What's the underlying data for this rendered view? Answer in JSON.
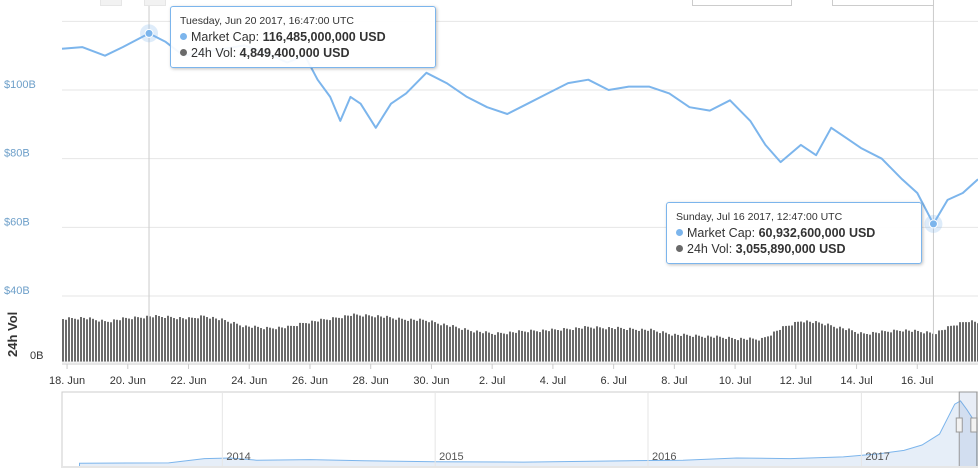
{
  "colors": {
    "market_cap": "#7cb5ec",
    "volume": "#6a6a6a",
    "axis_text": "#6d9fc9",
    "axis_text_dark": "#333333",
    "grid": "#e6e6e6",
    "navigator_fill": "#e6eef8"
  },
  "chart_data": [
    {
      "type": "line",
      "title": "",
      "ylabel": "",
      "x_range": [
        "2017-06-17T20:00",
        "2017-07-18T00:00"
      ],
      "ylim": [
        40,
        120
      ],
      "y_unit": "billion USD",
      "y_ticks": [
        "$40B",
        "$60B",
        "$80B",
        "$100B"
      ],
      "grid": true,
      "x_tick_labels": [
        "18. Jun",
        "20. Jun",
        "22. Jun",
        "24. Jun",
        "26. Jun",
        "28. Jun",
        "30. Jun",
        "2. Jul",
        "4. Jul",
        "6. Jul",
        "8. Jul",
        "10. Jul",
        "12. Jul",
        "14. Jul",
        "16. Jul"
      ],
      "series": [
        {
          "name": "Market Cap",
          "points": [
            [
              "2017-06-17T20:00",
              112
            ],
            [
              "2017-06-18T12:00",
              112.5
            ],
            [
              "2017-06-19T06:00",
              110
            ],
            [
              "2017-06-19T20:00",
              112.5
            ],
            [
              "2017-06-20T16:47",
              116.5
            ],
            [
              "2017-06-21T06:00",
              114
            ],
            [
              "2017-06-21T20:00",
              110
            ],
            [
              "2017-06-22T12:00",
              111
            ],
            [
              "2017-06-23T04:00",
              112
            ],
            [
              "2017-06-23T20:00",
              113
            ],
            [
              "2017-06-24T12:00",
              111
            ],
            [
              "2017-06-25T06:00",
              108
            ],
            [
              "2017-06-25T20:00",
              110
            ],
            [
              "2017-06-26T06:00",
              103
            ],
            [
              "2017-06-26T16:00",
              98
            ],
            [
              "2017-06-27T00:00",
              91
            ],
            [
              "2017-06-27T08:00",
              98
            ],
            [
              "2017-06-27T16:00",
              96
            ],
            [
              "2017-06-28T04:00",
              89
            ],
            [
              "2017-06-28T16:00",
              96
            ],
            [
              "2017-06-29T04:00",
              99
            ],
            [
              "2017-06-29T20:00",
              105
            ],
            [
              "2017-06-30T12:00",
              102
            ],
            [
              "2017-07-01T04:00",
              98
            ],
            [
              "2017-07-01T20:00",
              95
            ],
            [
              "2017-07-02T12:00",
              93
            ],
            [
              "2017-07-03T04:00",
              96
            ],
            [
              "2017-07-03T20:00",
              99
            ],
            [
              "2017-07-04T12:00",
              102
            ],
            [
              "2017-07-05T04:00",
              103
            ],
            [
              "2017-07-05T20:00",
              100
            ],
            [
              "2017-07-06T12:00",
              101
            ],
            [
              "2017-07-07T04:00",
              101
            ],
            [
              "2017-07-07T20:00",
              99
            ],
            [
              "2017-07-08T12:00",
              95
            ],
            [
              "2017-07-09T04:00",
              94
            ],
            [
              "2017-07-09T20:00",
              97
            ],
            [
              "2017-07-10T12:00",
              91
            ],
            [
              "2017-07-11T00:00",
              84
            ],
            [
              "2017-07-11T12:00",
              79
            ],
            [
              "2017-07-12T04:00",
              84
            ],
            [
              "2017-07-12T16:00",
              81
            ],
            [
              "2017-07-13T04:00",
              89
            ],
            [
              "2017-07-13T16:00",
              86
            ],
            [
              "2017-07-14T04:00",
              83
            ],
            [
              "2017-07-14T20:00",
              80
            ],
            [
              "2017-07-15T12:00",
              74
            ],
            [
              "2017-07-16T00:00",
              70
            ],
            [
              "2017-07-16T12:47",
              61
            ],
            [
              "2017-07-17T00:00",
              68
            ],
            [
              "2017-07-17T12:00",
              70
            ],
            [
              "2017-07-18T00:00",
              74
            ]
          ]
        }
      ]
    },
    {
      "type": "bar",
      "title": "",
      "ylabel": "24h Vol",
      "y_ticks": [
        "0B"
      ],
      "series": [
        {
          "name": "24h Vol",
          "points": [
            [
              "2017-06-17T20:00",
              4.6
            ],
            [
              "2017-06-18T12:00",
              4.7
            ],
            [
              "2017-06-19T06:00",
              4.3
            ],
            [
              "2017-06-19T20:00",
              4.6
            ],
            [
              "2017-06-20T16:47",
              4.85
            ],
            [
              "2017-06-21T06:00",
              4.8
            ],
            [
              "2017-06-22T00:00",
              4.6
            ],
            [
              "2017-06-22T12:00",
              4.9
            ],
            [
              "2017-06-23T04:00",
              4.4
            ],
            [
              "2017-06-23T20:00",
              3.8
            ],
            [
              "2017-06-24T12:00",
              3.6
            ],
            [
              "2017-06-25T06:00",
              3.7
            ],
            [
              "2017-06-25T20:00",
              4.2
            ],
            [
              "2017-06-26T16:00",
              4.6
            ],
            [
              "2017-06-27T08:00",
              5.0
            ],
            [
              "2017-06-28T04:00",
              4.9
            ],
            [
              "2017-06-28T20:00",
              4.6
            ],
            [
              "2017-06-29T20:00",
              4.4
            ],
            [
              "2017-06-30T12:00",
              3.9
            ],
            [
              "2017-07-01T04:00",
              3.4
            ],
            [
              "2017-07-02T00:00",
              3.0
            ],
            [
              "2017-07-03T04:00",
              3.3
            ],
            [
              "2017-07-04T00:00",
              3.4
            ],
            [
              "2017-07-05T04:00",
              3.7
            ],
            [
              "2017-07-06T00:00",
              3.6
            ],
            [
              "2017-07-07T04:00",
              3.4
            ],
            [
              "2017-07-08T00:00",
              2.9
            ],
            [
              "2017-07-09T04:00",
              2.7
            ],
            [
              "2017-07-10T00:00",
              2.5
            ],
            [
              "2017-07-10T20:00",
              2.4
            ],
            [
              "2017-07-11T12:00",
              3.6
            ],
            [
              "2017-07-12T04:00",
              4.4
            ],
            [
              "2017-07-12T20:00",
              4.1
            ],
            [
              "2017-07-13T12:00",
              3.6
            ],
            [
              "2017-07-14T04:00",
              3.0
            ],
            [
              "2017-07-14T20:00",
              3.2
            ],
            [
              "2017-07-15T12:00",
              3.4
            ],
            [
              "2017-07-16T12:47",
              3.06
            ],
            [
              "2017-07-17T04:00",
              3.9
            ],
            [
              "2017-07-17T16:00",
              4.4
            ],
            [
              "2017-07-18T00:00",
              4.2
            ]
          ]
        }
      ]
    },
    {
      "type": "area",
      "title": "",
      "x_tick_labels": [
        "2014",
        "2015",
        "2016",
        "2017"
      ],
      "series": [
        {
          "name": "",
          "points": [
            [
              "2013-05-01",
              1.5
            ],
            [
              "2013-10-01",
              2
            ],
            [
              "2013-12-01",
              10
            ],
            [
              "2014-01-15",
              11
            ],
            [
              "2014-03-01",
              7
            ],
            [
              "2014-06-01",
              8
            ],
            [
              "2014-09-01",
              6
            ],
            [
              "2015-01-01",
              4
            ],
            [
              "2015-06-01",
              3.5
            ],
            [
              "2015-12-01",
              6
            ],
            [
              "2016-03-01",
              7
            ],
            [
              "2016-06-01",
              11
            ],
            [
              "2016-09-01",
              10
            ],
            [
              "2016-12-01",
              13
            ],
            [
              "2017-02-01",
              19
            ],
            [
              "2017-03-15",
              25
            ],
            [
              "2017-04-15",
              35
            ],
            [
              "2017-05-15",
              55
            ],
            [
              "2017-06-10",
              110
            ],
            [
              "2017-06-20",
              116
            ],
            [
              "2017-07-01",
              100
            ],
            [
              "2017-07-10",
              85
            ],
            [
              "2017-07-16",
              61
            ],
            [
              "2017-07-18",
              74
            ]
          ]
        }
      ]
    }
  ],
  "tooltips": [
    {
      "date": "Tuesday, Jun 20 2017, 16:47:00 UTC",
      "market_cap_label": "Market Cap:",
      "market_cap_value": "116,485,000,000 USD",
      "vol_label": "24h Vol:",
      "vol_value": "4,849,400,000 USD"
    },
    {
      "date": "Sunday, Jul 16 2017, 12:47:00 UTC",
      "market_cap_label": "Market Cap:",
      "market_cap_value": "60,932,600,000 USD",
      "vol_label": "24h Vol:",
      "vol_value": "3,055,890,000 USD"
    }
  ]
}
